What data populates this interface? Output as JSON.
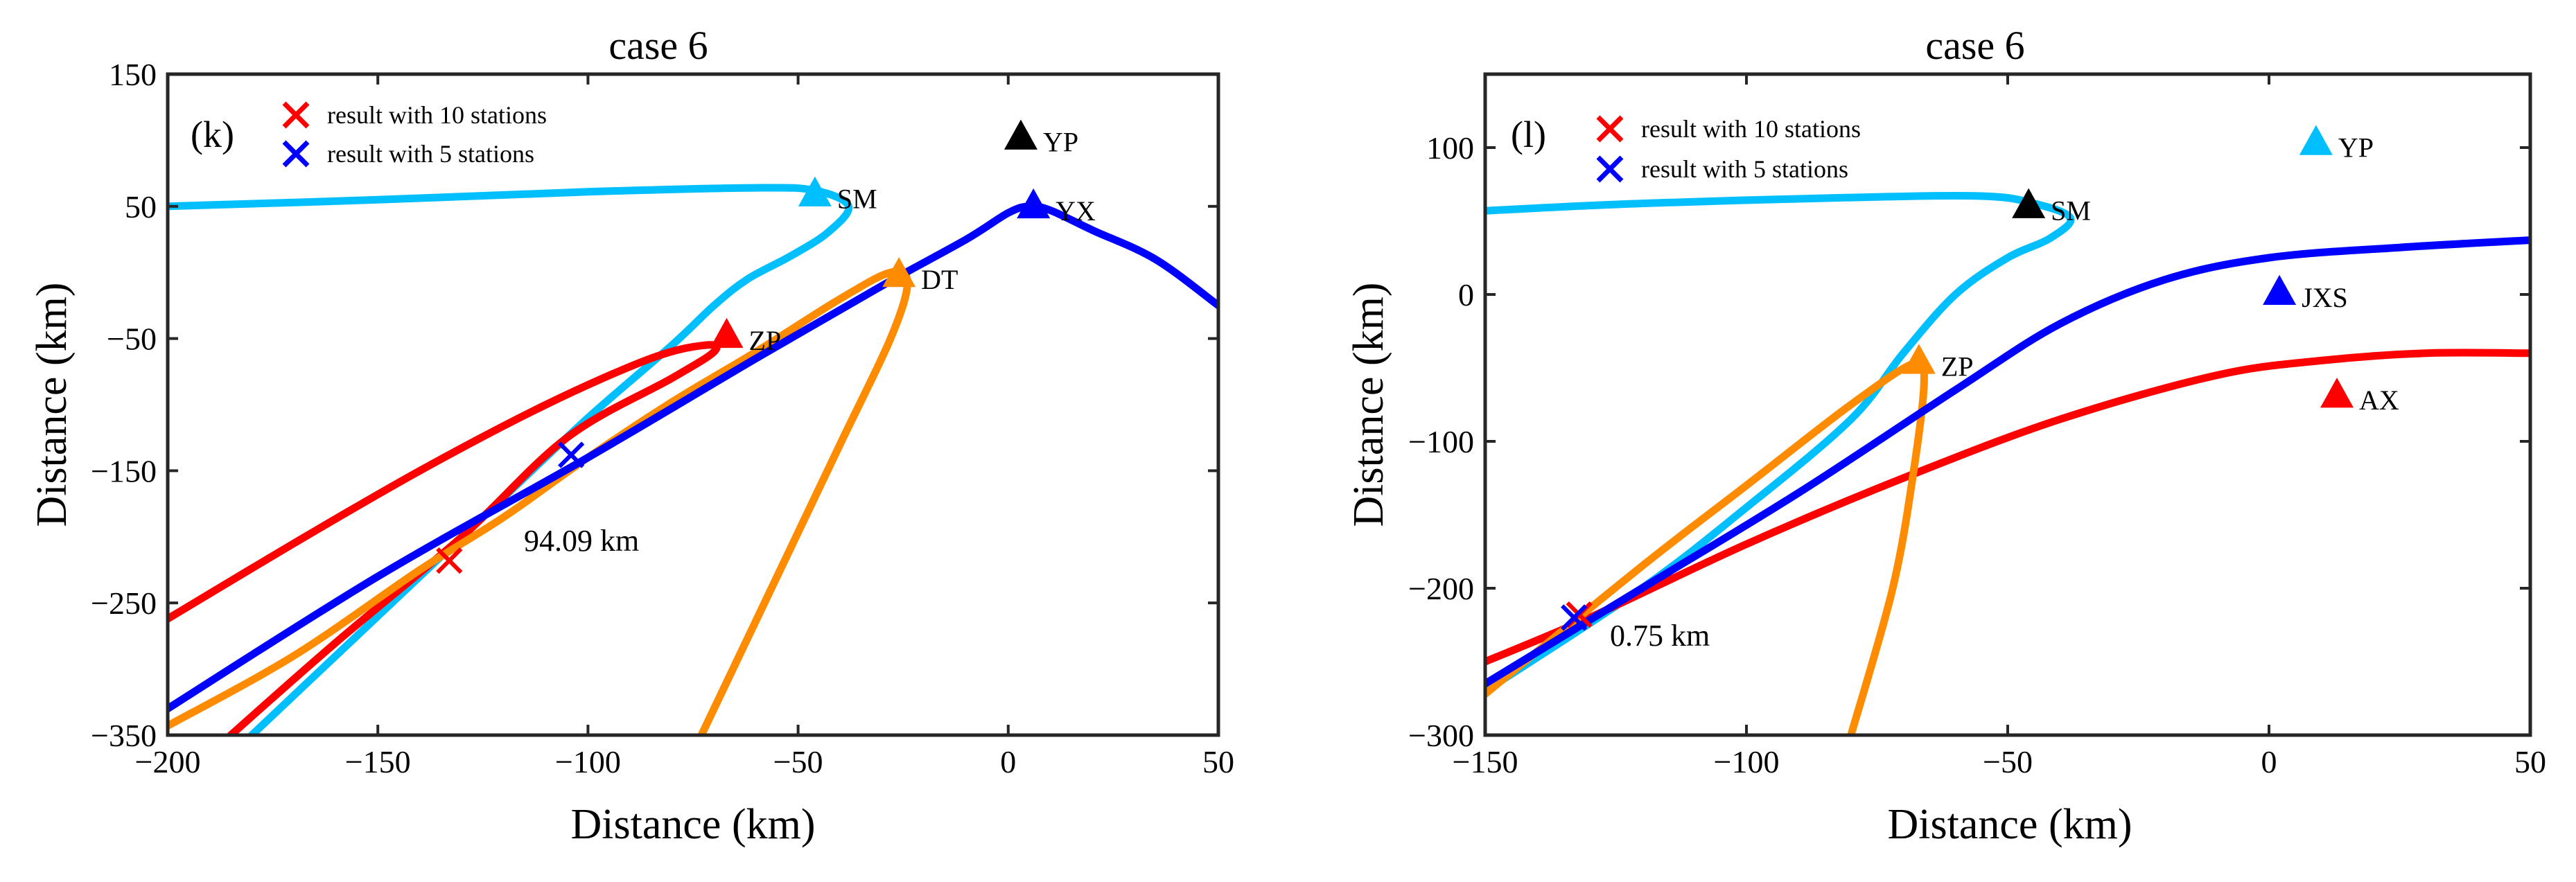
{
  "chart_data": [
    {
      "type": "line",
      "panel": "(k)",
      "title": "case 6",
      "xlabel": "Distance (km)",
      "ylabel": "Distance (km)",
      "xlim": [
        -200,
        50
      ],
      "ylim": [
        -350,
        150
      ],
      "xticks": [
        -200,
        -150,
        -100,
        -50,
        0,
        50
      ],
      "yticks": [
        -350,
        -250,
        -150,
        -50,
        50,
        150
      ],
      "xtick_labels": [
        "−200",
        "−150",
        "−100",
        "−50",
        "0",
        "50"
      ],
      "ytick_labels": [
        "−350",
        "−250",
        "−150",
        "−50",
        "50",
        "150"
      ],
      "grid": false,
      "legend": {
        "position": "top-left",
        "entries": [
          {
            "label": "result with 10 stations",
            "marker": "x",
            "color": "#ff0000"
          },
          {
            "label": "result with 5 stations",
            "marker": "x",
            "color": "#0000ff"
          }
        ]
      },
      "stations": [
        {
          "name": "YP",
          "x": 3,
          "y": 103,
          "color": "#000000"
        },
        {
          "name": "SM",
          "x": -46,
          "y": 60,
          "color": "#00bfff"
        },
        {
          "name": "YX",
          "x": 6,
          "y": 51,
          "color": "#0000ff"
        },
        {
          "name": "DT",
          "x": -26,
          "y": -1,
          "color": "#ff8c00"
        },
        {
          "name": "ZP",
          "x": -67,
          "y": -47,
          "color": "#ff0000"
        }
      ],
      "series": [
        {
          "color": "#00bfff",
          "points": [
            [
              -200,
              50
            ],
            [
              -150,
              55
            ],
            [
              -100,
              61
            ],
            [
              -60,
              64
            ],
            [
              -46,
              62
            ],
            [
              -38,
              50
            ],
            [
              -43,
              30
            ],
            [
              -52,
              12
            ],
            [
              -62,
              -5
            ],
            [
              -70,
              -25
            ],
            [
              -80,
              -55
            ],
            [
              -100,
              -110
            ],
            [
              -120,
              -170
            ],
            [
              -140,
              -230
            ],
            [
              -160,
              -290
            ],
            [
              -180,
              -350
            ]
          ]
        },
        {
          "color": "#ff0000",
          "points": [
            [
              -200,
              -262
            ],
            [
              -170,
              -205
            ],
            [
              -140,
              -150
            ],
            [
              -110,
              -100
            ],
            [
              -85,
              -65
            ],
            [
              -72,
              -55
            ],
            [
              -70,
              -60
            ],
            [
              -80,
              -80
            ],
            [
              -105,
              -125
            ],
            [
              -130,
              -200
            ],
            [
              -160,
              -280
            ],
            [
              -185,
              -350
            ]
          ]
        },
        {
          "color": "#ff8c00",
          "points": [
            [
              -200,
              -343
            ],
            [
              -170,
              -290
            ],
            [
              -140,
              -225
            ],
            [
              -120,
              -185
            ],
            [
              -100,
              -140
            ],
            [
              -80,
              -98
            ],
            [
              -60,
              -60
            ],
            [
              -40,
              -20
            ],
            [
              -28,
              0
            ],
            [
              -24,
              -8
            ],
            [
              -28,
              -50
            ],
            [
              -40,
              -130
            ],
            [
              -55,
              -230
            ],
            [
              -73,
              -350
            ]
          ]
        },
        {
          "color": "#0000ff",
          "points": [
            [
              -200,
              -330
            ],
            [
              -150,
              -230
            ],
            [
              -100,
              -140
            ],
            [
              -60,
              -65
            ],
            [
              -30,
              -10
            ],
            [
              -10,
              25
            ],
            [
              0,
              45
            ],
            [
              5,
              50
            ],
            [
              10,
              47
            ],
            [
              20,
              32
            ],
            [
              35,
              10
            ],
            [
              50,
              -25
            ]
          ]
        }
      ],
      "crosses": [
        {
          "x": -133,
          "y": -218,
          "color": "#ff0000"
        },
        {
          "x": -104,
          "y": -138,
          "color": "#0000ff"
        }
      ],
      "annotation": {
        "text": "94.09 km",
        "x": -115,
        "y": -203
      }
    },
    {
      "type": "line",
      "panel": "(l)",
      "title": "case 6",
      "xlabel": "Distance (km)",
      "ylabel": "Distance (km)",
      "xlim": [
        -150,
        50
      ],
      "ylim": [
        -300,
        150
      ],
      "xticks": [
        -150,
        -100,
        -50,
        0,
        50
      ],
      "yticks": [
        -300,
        -200,
        -100,
        0,
        100
      ],
      "xtick_labels": [
        "−150",
        "−100",
        "−50",
        "0",
        "50"
      ],
      "ytick_labels": [
        "−300",
        "−200",
        "−100",
        "0",
        "100"
      ],
      "grid": false,
      "legend": {
        "position": "top-left",
        "entries": [
          {
            "label": "result with 10 stations",
            "marker": "x",
            "color": "#ff0000"
          },
          {
            "label": "result with 5 stations",
            "marker": "x",
            "color": "#0000ff"
          }
        ]
      },
      "stations": [
        {
          "name": "YP",
          "x": 9,
          "y": 104,
          "color": "#00bfff"
        },
        {
          "name": "SM",
          "x": -46,
          "y": 61,
          "color": "#000000"
        },
        {
          "name": "JXS",
          "x": 2,
          "y": 2,
          "color": "#0000ff"
        },
        {
          "name": "ZP",
          "x": -67,
          "y": -45,
          "color": "#ff8c00"
        },
        {
          "name": "AX",
          "x": 13,
          "y": -68,
          "color": "#ff0000"
        }
      ],
      "series": [
        {
          "color": "#00bfff",
          "points": [
            [
              -150,
              57
            ],
            [
              -120,
              62
            ],
            [
              -80,
              66
            ],
            [
              -55,
              67
            ],
            [
              -45,
              62
            ],
            [
              -38,
              52
            ],
            [
              -42,
              38
            ],
            [
              -50,
              25
            ],
            [
              -60,
              0
            ],
            [
              -70,
              -40
            ],
            [
              -80,
              -85
            ],
            [
              -100,
              -145
            ],
            [
              -120,
              -200
            ],
            [
              -150,
              -270
            ]
          ]
        },
        {
          "color": "#ff0000",
          "points": [
            [
              -150,
              -250
            ],
            [
              -130,
              -220
            ],
            [
              -100,
              -170
            ],
            [
              -70,
              -125
            ],
            [
              -40,
              -85
            ],
            [
              -10,
              -55
            ],
            [
              10,
              -45
            ],
            [
              30,
              -40
            ],
            [
              50,
              -40
            ]
          ]
        },
        {
          "color": "#ff8c00",
          "points": [
            [
              -150,
              -272
            ],
            [
              -120,
              -185
            ],
            [
              -100,
              -130
            ],
            [
              -80,
              -75
            ],
            [
              -68,
              -47
            ],
            [
              -66,
              -58
            ],
            [
              -68,
              -120
            ],
            [
              -72,
              -200
            ],
            [
              -80,
              -300
            ]
          ]
        },
        {
          "color": "#0000ff",
          "points": [
            [
              -150,
              -265
            ],
            [
              -120,
              -200
            ],
            [
              -90,
              -135
            ],
            [
              -60,
              -65
            ],
            [
              -40,
              -20
            ],
            [
              -20,
              10
            ],
            [
              0,
              25
            ],
            [
              25,
              32
            ],
            [
              50,
              37
            ]
          ]
        }
      ],
      "crosses": [
        {
          "x": -132,
          "y": -218,
          "color": "#ff0000"
        },
        {
          "x": -133,
          "y": -220,
          "color": "#0000ff"
        }
      ],
      "annotation": {
        "text": "0.75 km",
        "x": -129,
        "y": -233
      }
    }
  ]
}
